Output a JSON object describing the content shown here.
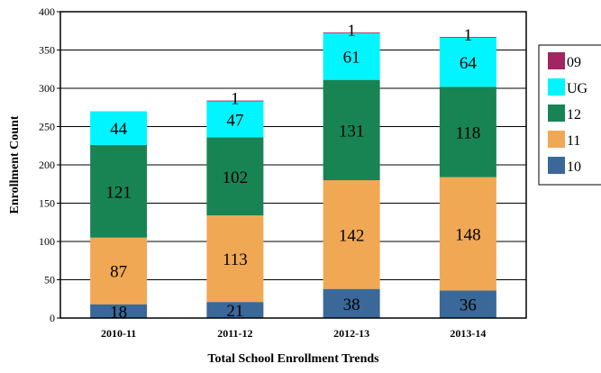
{
  "chart_data": {
    "type": "bar",
    "stacked": true,
    "categories": [
      "2010-11",
      "2011-12",
      "2012-13",
      "2013-14"
    ],
    "series": [
      {
        "name": "10",
        "values": [
          18,
          21,
          38,
          36
        ],
        "color": "#3A6898"
      },
      {
        "name": "11",
        "values": [
          87,
          113,
          142,
          148
        ],
        "color": "#F0A855"
      },
      {
        "name": "12",
        "values": [
          121,
          102,
          131,
          118
        ],
        "color": "#198453"
      },
      {
        "name": "UG",
        "values": [
          44,
          47,
          61,
          64
        ],
        "color": "#00F5FF"
      },
      {
        "name": "09",
        "values": [
          0,
          1,
          1,
          1
        ],
        "color": "#A02561"
      }
    ],
    "legend_order": [
      "09",
      "UG",
      "12",
      "11",
      "10"
    ],
    "xlabel": "Total School Enrollment Trends",
    "ylabel": "Enrollment Count",
    "ylim": [
      0,
      400
    ],
    "yticks": [
      0,
      50,
      100,
      150,
      200,
      250,
      300,
      350,
      400
    ],
    "grid": true,
    "legend_position": "right"
  }
}
